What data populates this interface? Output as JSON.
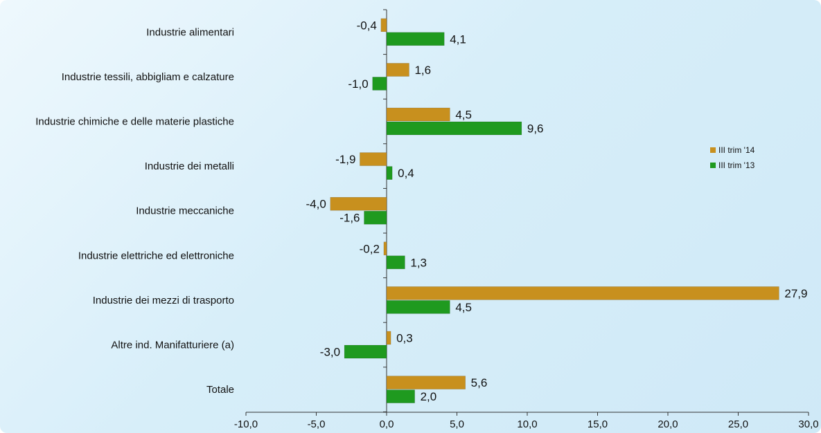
{
  "chart_data": {
    "type": "bar",
    "orientation": "horizontal",
    "title": "",
    "xlabel": "",
    "ylabel": "",
    "categories": [
      "Industrie alimentari",
      "Industrie tessili, abbigliam e calzature",
      "Industrie chimiche e delle materie plastiche",
      "Industrie dei metalli",
      "Industrie meccaniche",
      "Industrie elettriche ed elettroniche",
      "Industrie dei mezzi di trasporto",
      "Altre ind. Manifatturiere (a)",
      "Totale"
    ],
    "series": [
      {
        "name": "III trim '14",
        "color": "#c8901e",
        "values": [
          -0.4,
          1.6,
          4.5,
          -1.9,
          -4.0,
          -0.2,
          27.9,
          0.3,
          5.6
        ],
        "labels": [
          "-0,4",
          "1,6",
          "4,5",
          "-1,9",
          "-4,0",
          "-0,2",
          "27,9",
          "0,3",
          "5,6"
        ]
      },
      {
        "name": "III trim '13",
        "color": "#1f9a1f",
        "values": [
          4.1,
          -1.0,
          9.6,
          0.4,
          -1.6,
          1.3,
          4.5,
          -3.0,
          2.0
        ],
        "labels": [
          "4,1",
          "-1,0",
          "9,6",
          "0,4",
          "-1,6",
          "1,3",
          "4,5",
          "-3,0",
          "2,0"
        ]
      }
    ],
    "xlim": [
      -10,
      30
    ],
    "xticks": [
      -10,
      -5,
      0,
      5,
      10,
      15,
      20,
      25,
      30
    ],
    "xtick_labels": [
      "-10,0",
      "-5,0",
      "0,0",
      "5,0",
      "10,0",
      "15,0",
      "20,0",
      "25,0",
      "30,0"
    ],
    "grid": false,
    "legend_position": "right"
  }
}
